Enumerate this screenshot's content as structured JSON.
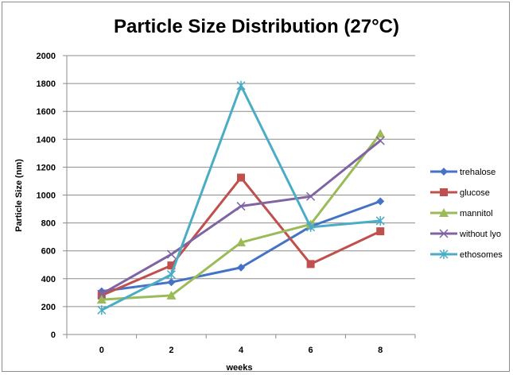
{
  "chart_data": {
    "type": "line",
    "title": "Particle Size Distribution (27°C)",
    "xlabel": "weeks",
    "ylabel": "Particle Size (nm)",
    "x": [
      0,
      2,
      4,
      6,
      8
    ],
    "ylim": [
      0,
      2000
    ],
    "yticks": [
      0,
      200,
      400,
      600,
      800,
      1000,
      1200,
      1400,
      1600,
      1800,
      2000
    ],
    "grid": true,
    "legend_position": "right",
    "series": [
      {
        "name": "trehalose",
        "color": "#4472c4",
        "marker": "diamond",
        "values": [
          310,
          375,
          480,
          775,
          955
        ]
      },
      {
        "name": "glucose",
        "color": "#c0504d",
        "marker": "square",
        "values": [
          280,
          495,
          1125,
          505,
          740
        ]
      },
      {
        "name": "mannitol",
        "color": "#9bbb59",
        "marker": "triangle",
        "values": [
          250,
          280,
          660,
          790,
          1440
        ]
      },
      {
        "name": "without lyo",
        "color": "#8064a2",
        "marker": "x",
        "values": [
          290,
          575,
          920,
          990,
          1390
        ]
      },
      {
        "name": "ethosomes",
        "color": "#4bacc6",
        "marker": "star",
        "values": [
          175,
          430,
          1785,
          770,
          815
        ]
      }
    ]
  }
}
